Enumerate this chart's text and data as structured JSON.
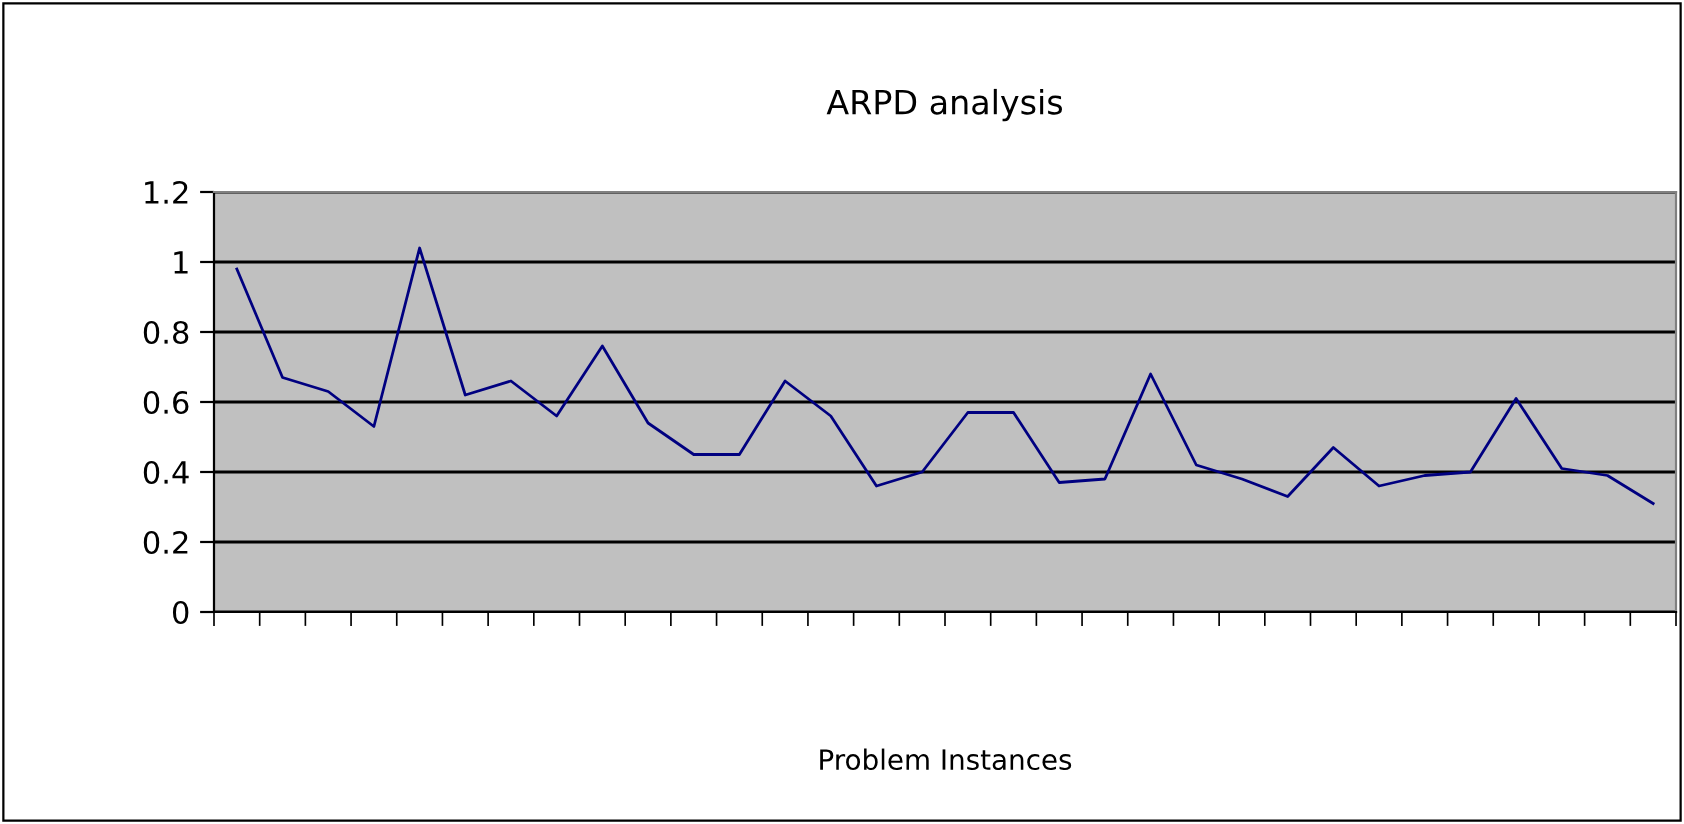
{
  "chart_data": {
    "type": "line",
    "title": "ARPD analysis",
    "xlabel": "Problem Instances",
    "categories": [
      null,
      null,
      null,
      null,
      null,
      null,
      null,
      null,
      null,
      null,
      null,
      null,
      null,
      null,
      null,
      null,
      null,
      null,
      null,
      null,
      null,
      null,
      null,
      null,
      null,
      null,
      null,
      null,
      null,
      null,
      null,
      null
    ],
    "series": [
      {
        "color": "#000080",
        "values": [
          0.98,
          0.67,
          0.63,
          0.53,
          1.04,
          0.62,
          0.66,
          0.56,
          0.76,
          0.54,
          0.45,
          0.45,
          0.66,
          0.56,
          0.36,
          0.4,
          0.57,
          0.57,
          0.37,
          0.38,
          0.68,
          0.42,
          0.38,
          0.33,
          0.47,
          0.36,
          0.39,
          0.4,
          0.61,
          0.41,
          0.39,
          0.31
        ]
      }
    ],
    "ylim": [
      0,
      1.2
    ],
    "yticks": [
      0,
      0.2,
      0.4,
      0.6,
      0.8,
      1,
      1.2
    ],
    "grid": "y",
    "marker": "none",
    "line_style": "solid"
  }
}
